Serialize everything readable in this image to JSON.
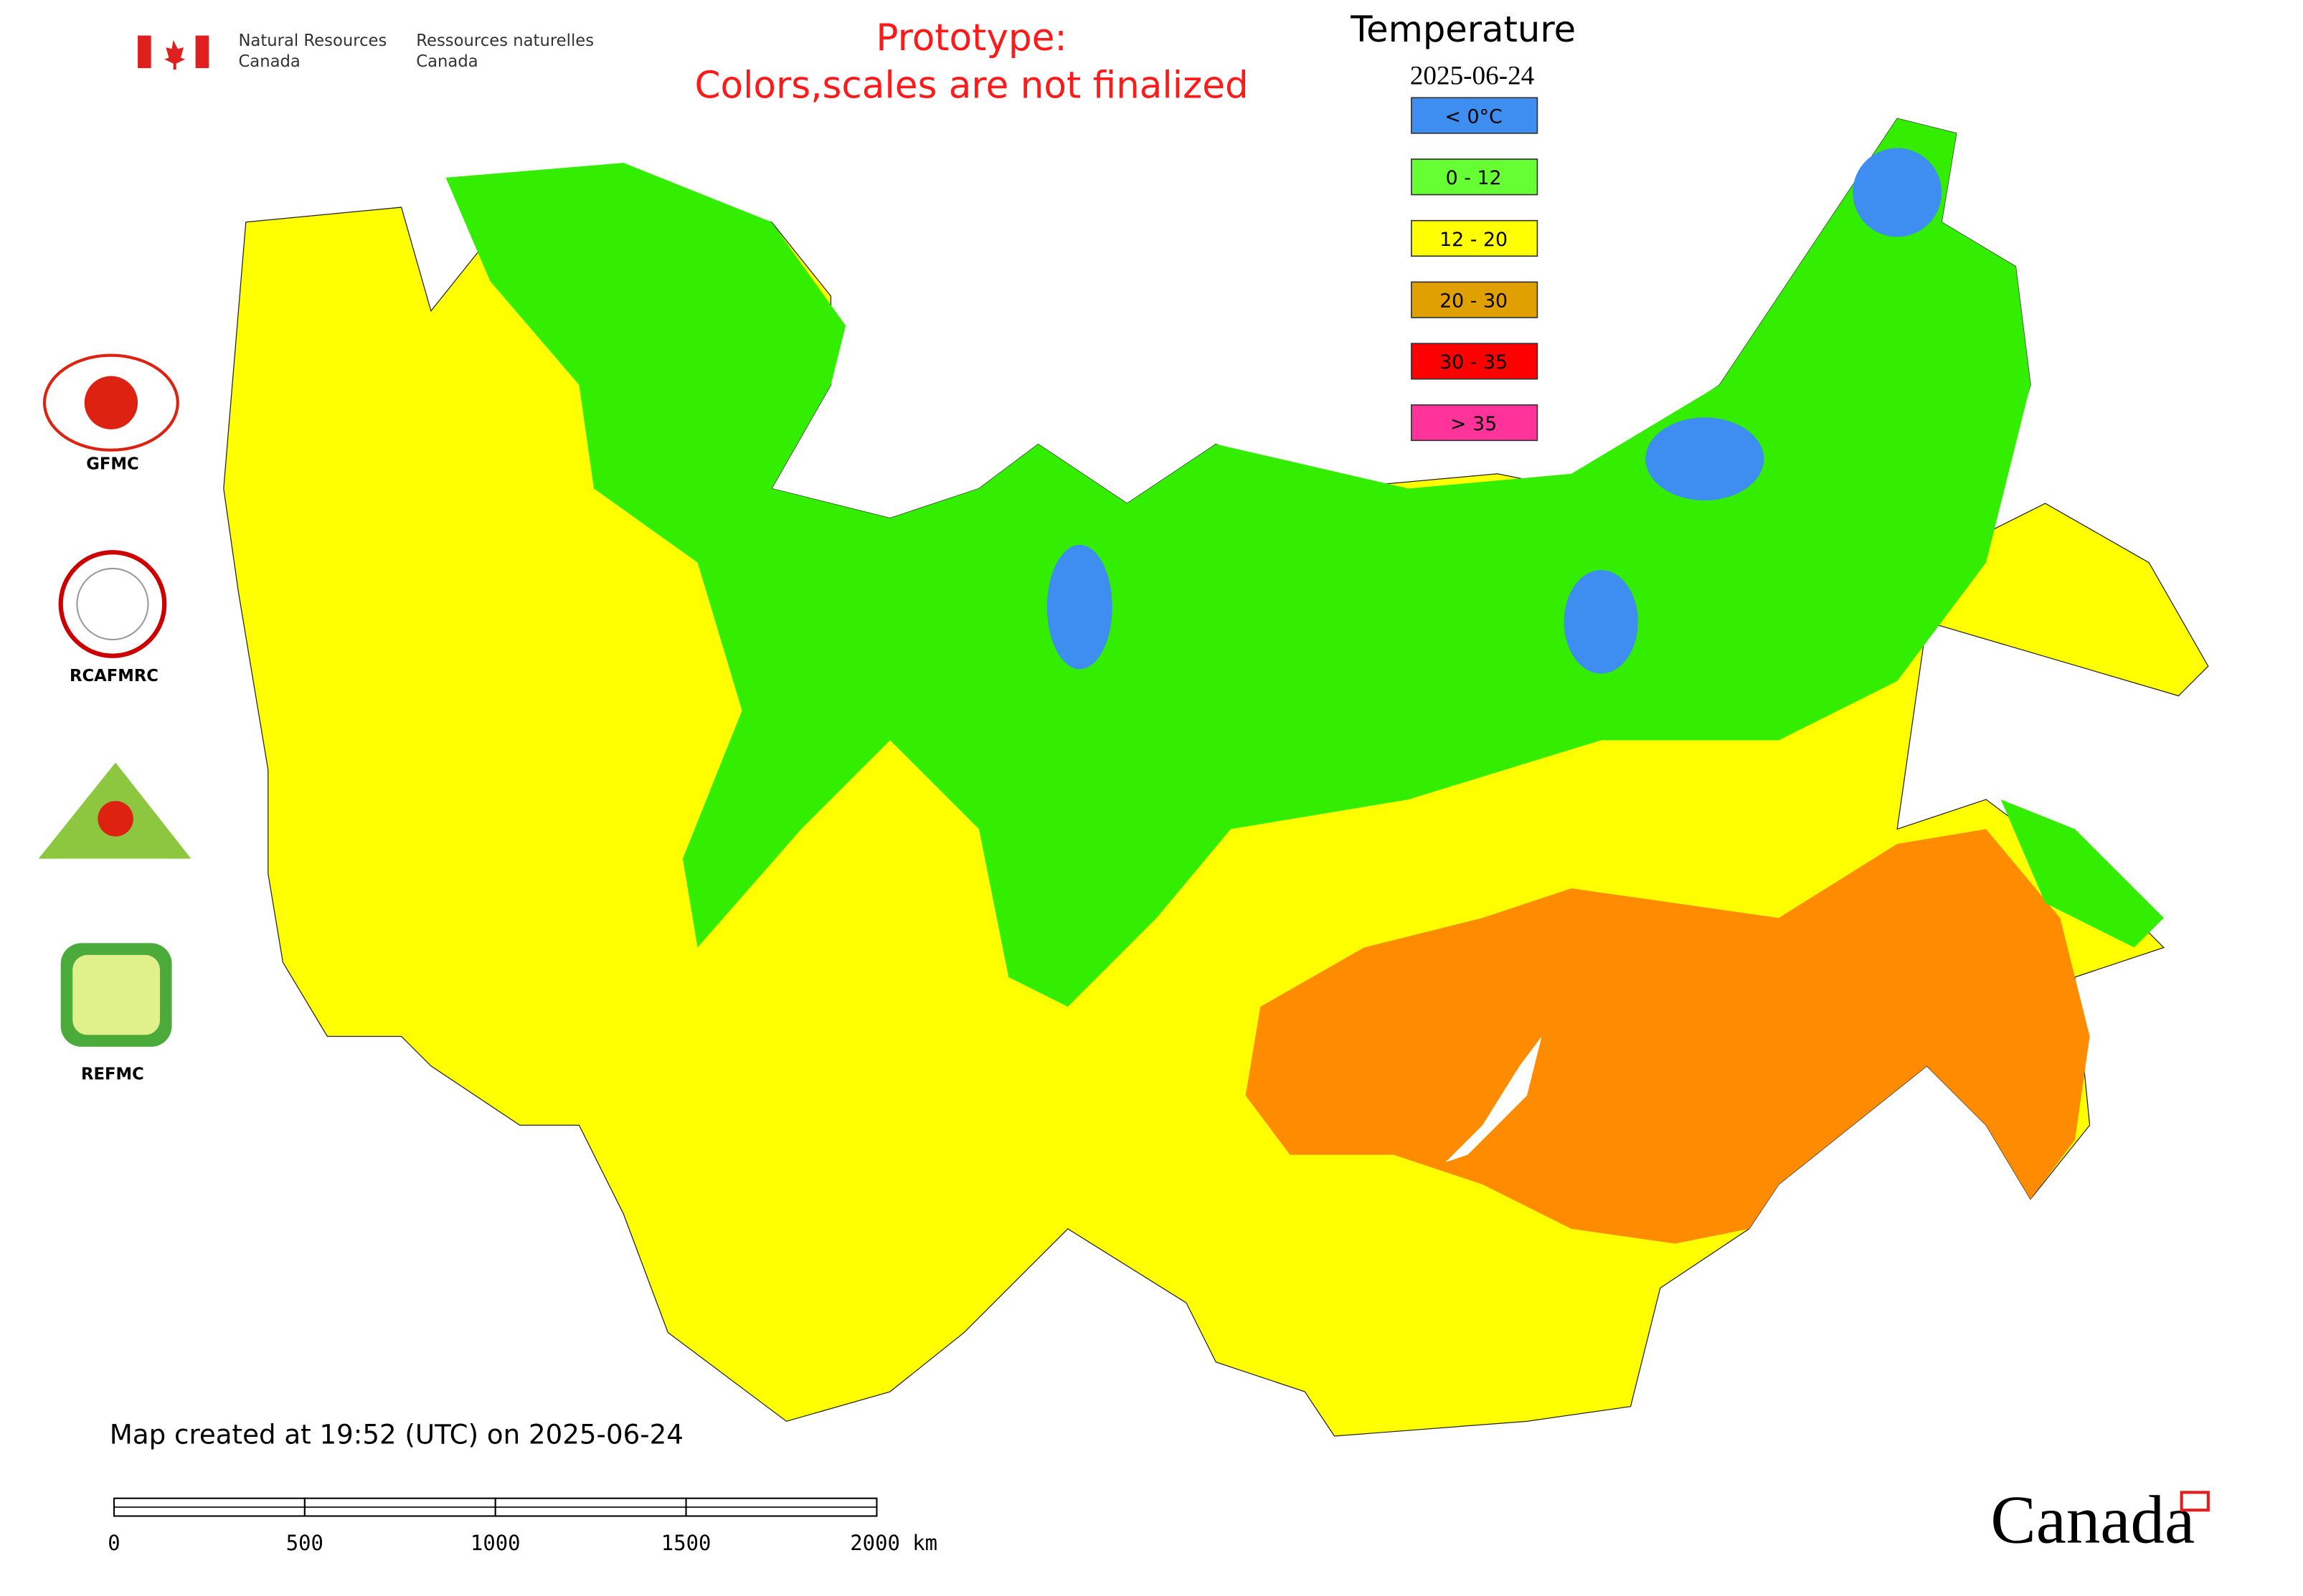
{
  "header": {
    "department_en": [
      "Natural Resources",
      "Canada"
    ],
    "department_fr": [
      "Ressources naturelles",
      "Canada"
    ]
  },
  "notice": [
    "Prototype:",
    "Colors,scales are not finalized"
  ],
  "legend": {
    "title": "Temperature",
    "date": "2025-06-24",
    "items": [
      {
        "label": "< 0°C",
        "color": "#3d8ef0"
      },
      {
        "label": "0 - 12",
        "color": "#66ff33"
      },
      {
        "label": "12 - 20",
        "color": "#ffff00"
      },
      {
        "label": "20 - 30",
        "color": "#e0a000"
      },
      {
        "label": "30 - 35",
        "color": "#ff0000"
      },
      {
        "label": "> 35",
        "color": "#ff3399"
      }
    ]
  },
  "logos": [
    "GFMC",
    "RCAFMRC",
    "REFMC"
  ],
  "footer": {
    "created": "Map created at 19:52 (UTC) on 2025-06-24",
    "scale_labels": [
      "0",
      "500",
      "1000",
      "1500",
      "2000 km"
    ],
    "wordmark": "Canada"
  }
}
